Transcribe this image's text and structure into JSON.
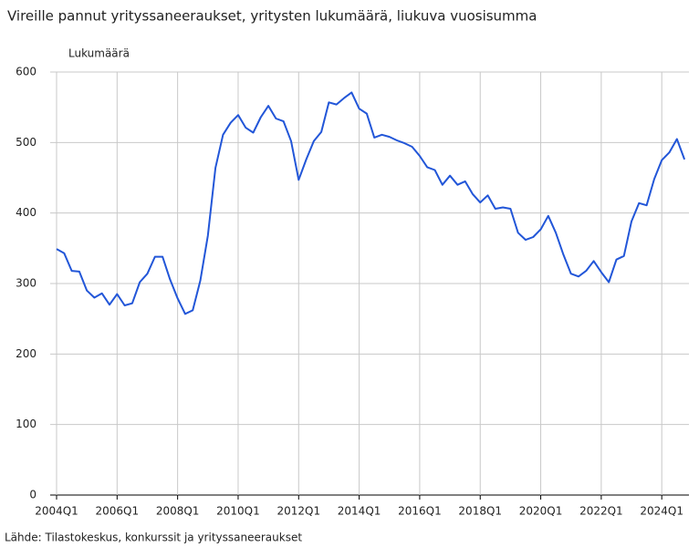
{
  "chart_data": {
    "type": "line",
    "title": "Vireille pannut yrityssaneeraukset, yritysten lukumäärä, liukuva vuosisumma",
    "y_label": "Lukumäärä",
    "source": "Lähde: Tilastokeskus, konkurssit ja yrityssaneeraukset",
    "categories": [
      "2004Q1",
      null,
      null,
      null,
      null,
      null,
      null,
      null,
      "2006Q1",
      null,
      null,
      null,
      null,
      null,
      null,
      null,
      "2008Q1",
      null,
      null,
      null,
      null,
      null,
      null,
      null,
      "2010Q1",
      null,
      null,
      null,
      null,
      null,
      null,
      null,
      "2012Q1",
      null,
      null,
      null,
      null,
      null,
      null,
      null,
      "2014Q1",
      null,
      null,
      null,
      null,
      null,
      null,
      null,
      "2016Q1",
      null,
      null,
      null,
      null,
      null,
      null,
      null,
      "2018Q1",
      null,
      null,
      null,
      null,
      null,
      null,
      null,
      "2020Q1",
      null,
      null,
      null,
      null,
      null,
      null,
      null,
      "2022Q1",
      null,
      null,
      null,
      null,
      null,
      null,
      null,
      "2024Q1",
      null,
      null,
      null
    ],
    "series": [
      {
        "name": "Lukumäärä",
        "color": "#2256d8",
        "values": [
          349,
          343,
          318,
          317,
          290,
          280,
          286,
          270,
          285,
          269,
          272,
          302,
          314,
          338,
          338,
          306,
          279,
          257,
          262,
          304,
          368,
          464,
          511,
          528,
          539,
          521,
          514,
          536,
          552,
          534,
          530,
          502,
          447,
          476,
          502,
          515,
          557,
          554,
          563,
          571,
          548,
          541,
          507,
          511,
          508,
          503,
          499,
          494,
          481,
          465,
          461,
          440,
          453,
          440,
          445,
          427,
          415,
          425,
          406,
          408,
          406,
          372,
          362,
          366,
          377,
          396,
          372,
          341,
          314,
          310,
          318,
          332,
          316,
          302,
          334,
          339,
          388,
          414,
          411,
          448,
          475,
          486,
          505,
          476
        ]
      }
    ],
    "ylim": [
      0,
      600
    ],
    "yticks": [
      0,
      100,
      200,
      300,
      400,
      500,
      600
    ],
    "grid": true
  }
}
